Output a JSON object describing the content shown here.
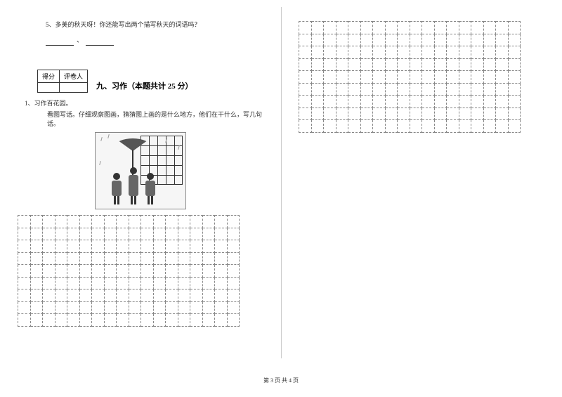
{
  "left": {
    "q5": {
      "number": "5、",
      "text": "多美的秋天呀！你还能写出两个描写秋天的词语吗？",
      "separator": "、"
    },
    "score_table": {
      "col1": "得分",
      "col2": "评卷人"
    },
    "section": {
      "number": "九、",
      "title": "习作（本题共计 25 分）"
    },
    "q1": {
      "number": "1、",
      "text": "习作百花园。",
      "sub": "看图写话。仔细观察图画，猜猜图上画的是什么地方，他们在干什么，写几句话。"
    },
    "grid": {
      "rows": 9,
      "cols": 18
    }
  },
  "right": {
    "grid": {
      "rows": 9,
      "cols": 18
    }
  },
  "footer": {
    "text": "第 3 页 共 4 页"
  },
  "colors": {
    "text": "#333333",
    "border": "#888888",
    "divider": "#cccccc"
  }
}
